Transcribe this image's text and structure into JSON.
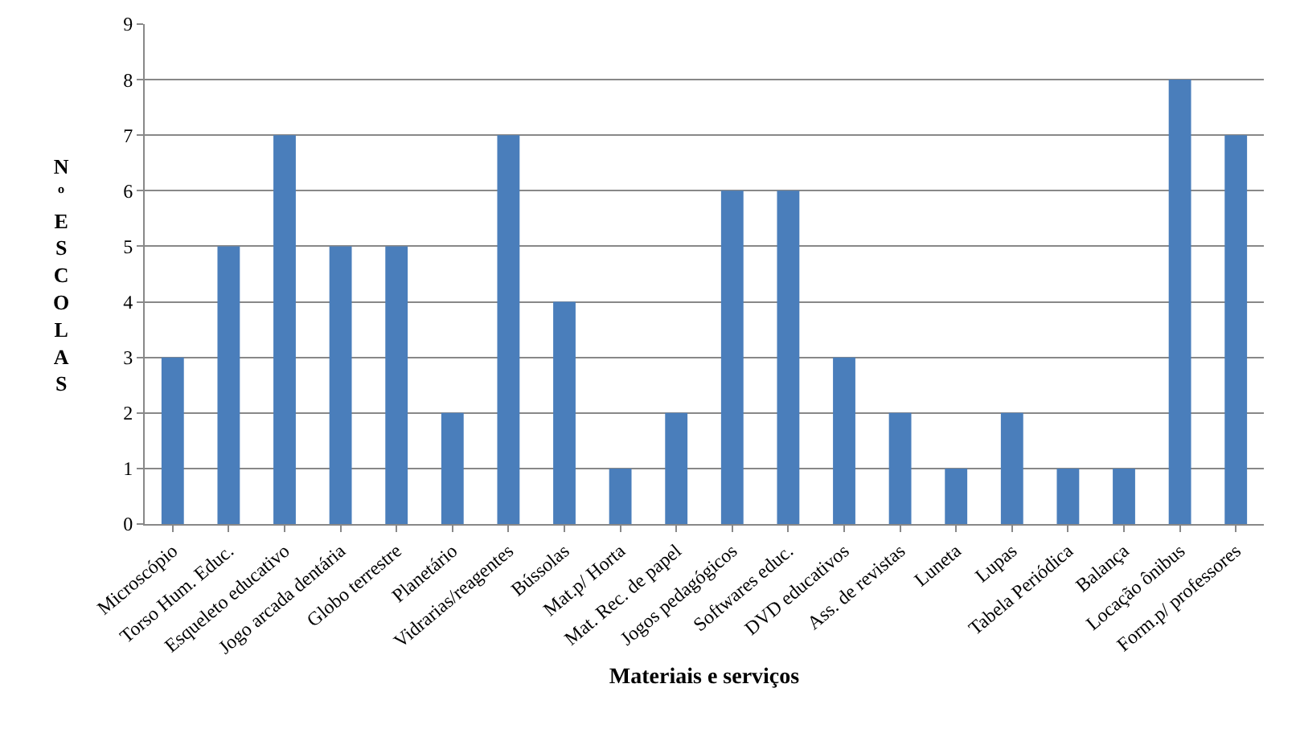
{
  "chart_data": {
    "type": "bar",
    "xlabel": "Materiais e serviços",
    "ylabel": "Nº ESCOLAS",
    "categories": [
      "Microscópio",
      "Torso Hum. Educ.",
      "Esqueleto educativo",
      "Jogo arcada dentária",
      "Globo terrestre",
      "Planetário",
      "Vidrarias/reagentes",
      "Bússolas",
      "Mat.p/ Horta",
      "Mat. Rec. de papel",
      "Jogos pedagógicos",
      "Softwares educ.",
      "DVD educativos",
      "Ass. de revistas",
      "Luneta",
      "Lupas",
      "Tabela Periódica",
      "Balança",
      "Locação ônibus",
      "Form.p/ professores"
    ],
    "values": [
      3,
      5,
      7,
      5,
      5,
      2,
      7,
      4,
      1,
      2,
      6,
      6,
      3,
      2,
      1,
      2,
      1,
      1,
      8,
      7
    ],
    "color": "#4a7ebb",
    "ylim": [
      0,
      9
    ],
    "yticks": [
      0,
      1,
      2,
      3,
      4,
      5,
      6,
      7,
      8,
      9
    ],
    "grid": "y",
    "legend": false
  }
}
